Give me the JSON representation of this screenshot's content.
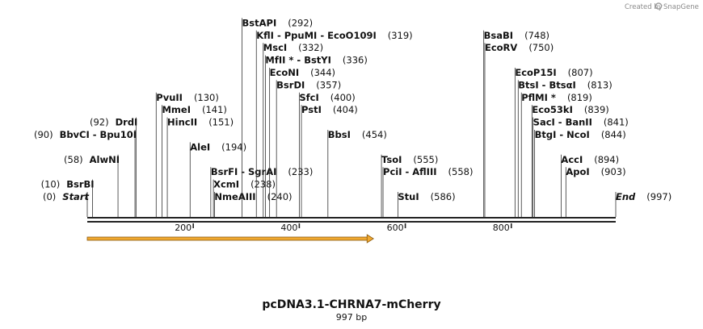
{
  "credit": {
    "prefix": "Created by",
    "brand": "SnapGene"
  },
  "map": {
    "length": 997,
    "title": "pcDNA3.1-CHRNA7-mCherry",
    "subtitle": "997 bp",
    "ticks": [
      200,
      400,
      600,
      800
    ],
    "feature_arrow": {
      "start": 0,
      "end": 540,
      "color": "#f0a830"
    }
  },
  "sites": [
    {
      "key": "start",
      "name": "Start",
      "pos": 0,
      "pos_text": "(0)",
      "row": 0,
      "layout": "posLeft",
      "style": "ital"
    },
    {
      "key": "bsrbi",
      "name": "BsrBI",
      "pos": 10,
      "pos_text": "(10)",
      "row": 1,
      "layout": "posLeft"
    },
    {
      "key": "alwni",
      "name": "AlwNI",
      "pos": 58,
      "pos_text": "(58)",
      "row": 3,
      "layout": "posLeft"
    },
    {
      "key": "bbvci",
      "name": "BbvCI - Bpu10I",
      "pos": 90,
      "pos_text": "(90)",
      "row": 5,
      "layout": "posLeft"
    },
    {
      "key": "drdi",
      "name": "DrdI",
      "pos": 92,
      "pos_text": "(92)",
      "row": 6,
      "layout": "posLeft"
    },
    {
      "key": "pvuii",
      "name": "PvuII",
      "pos": 130,
      "pos_text": "(130)",
      "row": 8,
      "layout": "posRight"
    },
    {
      "key": "mmei",
      "name": "MmeI",
      "pos": 141,
      "pos_text": "(141)",
      "row": 7,
      "layout": "posRight"
    },
    {
      "key": "hincii",
      "name": "HincII",
      "pos": 151,
      "pos_text": "(151)",
      "row": 6,
      "layout": "posRight"
    },
    {
      "key": "alei",
      "name": "AleI",
      "pos": 194,
      "pos_text": "(194)",
      "row": 4,
      "layout": "posRight"
    },
    {
      "key": "bsrfi",
      "name": "BsrFI - SgrAI",
      "pos": 233,
      "pos_text": "(233)",
      "row": 2,
      "layout": "posRight"
    },
    {
      "key": "xcmi",
      "name": "XcmI",
      "pos": 238,
      "pos_text": "(238)",
      "row": 1,
      "layout": "posRight"
    },
    {
      "key": "nmeaiii",
      "name": "NmeAIII",
      "pos": 240,
      "pos_text": "(240)",
      "row": 0,
      "layout": "posRight"
    },
    {
      "key": "bstapi",
      "name": "BstAPI",
      "pos": 292,
      "pos_text": "(292)",
      "row": 14,
      "layout": "posRight"
    },
    {
      "key": "kfli",
      "name": "KflI - PpuMI - EcoO109I",
      "pos": 319,
      "pos_text": "(319)",
      "row": 13,
      "layout": "posRight"
    },
    {
      "key": "msci",
      "name": "MscI",
      "pos": 332,
      "pos_text": "(332)",
      "row": 12,
      "layout": "posRight"
    },
    {
      "key": "mfli",
      "name": "MfII * - BstYI",
      "pos": 336,
      "pos_text": "(336)",
      "row": 11,
      "layout": "posRight"
    },
    {
      "key": "econi",
      "name": "EcoNI",
      "pos": 344,
      "pos_text": "(344)",
      "row": 10,
      "layout": "posRight"
    },
    {
      "key": "bsrdi",
      "name": "BsrDI",
      "pos": 357,
      "pos_text": "(357)",
      "row": 9,
      "layout": "posRight"
    },
    {
      "key": "sfci",
      "name": "SfcI",
      "pos": 400,
      "pos_text": "(400)",
      "row": 8,
      "layout": "posRight"
    },
    {
      "key": "psti",
      "name": "PstI",
      "pos": 404,
      "pos_text": "(404)",
      "row": 7,
      "layout": "posRight"
    },
    {
      "key": "bbsi",
      "name": "BbsI",
      "pos": 454,
      "pos_text": "(454)",
      "row": 5,
      "layout": "posRight"
    },
    {
      "key": "tsoi",
      "name": "TsoI",
      "pos": 555,
      "pos_text": "(555)",
      "row": 3,
      "layout": "posRight"
    },
    {
      "key": "pcii",
      "name": "PciI - AflIII",
      "pos": 558,
      "pos_text": "(558)",
      "row": 2,
      "layout": "posRight"
    },
    {
      "key": "stui",
      "name": "StuI",
      "pos": 586,
      "pos_text": "(586)",
      "row": 0,
      "layout": "posRight"
    },
    {
      "key": "bsabi",
      "name": "BsaBI",
      "pos": 748,
      "pos_text": "(748)",
      "row": 13,
      "layout": "posRight"
    },
    {
      "key": "ecorv",
      "name": "EcoRV",
      "pos": 750,
      "pos_text": "(750)",
      "row": 12,
      "layout": "posRight"
    },
    {
      "key": "ecop15i",
      "name": "EcoP15I",
      "pos": 807,
      "pos_text": "(807)",
      "row": 10,
      "layout": "posRight"
    },
    {
      "key": "btsi",
      "name": "BtsI - BtsαI",
      "pos": 813,
      "pos_text": "(813)",
      "row": 9,
      "layout": "posRight"
    },
    {
      "key": "pflmi",
      "name": "PflMI *",
      "pos": 819,
      "pos_text": "(819)",
      "row": 8,
      "layout": "posRight"
    },
    {
      "key": "eco53ki",
      "name": "Eco53kI",
      "pos": 839,
      "pos_text": "(839)",
      "row": 7,
      "layout": "posRight"
    },
    {
      "key": "saci",
      "name": "SacI - BanII",
      "pos": 841,
      "pos_text": "(841)",
      "row": 6,
      "layout": "posRight"
    },
    {
      "key": "btgi",
      "name": "BtgI - NcoI",
      "pos": 844,
      "pos_text": "(844)",
      "row": 5,
      "layout": "posRight"
    },
    {
      "key": "acci",
      "name": "AccI",
      "pos": 894,
      "pos_text": "(894)",
      "row": 3,
      "layout": "posRight"
    },
    {
      "key": "apoi",
      "name": "ApoI",
      "pos": 903,
      "pos_text": "(903)",
      "row": 2,
      "layout": "posRight"
    },
    {
      "key": "end",
      "name": "End",
      "pos": 997,
      "pos_text": "(997)",
      "row": 0,
      "layout": "posRight",
      "style": "ital"
    }
  ]
}
